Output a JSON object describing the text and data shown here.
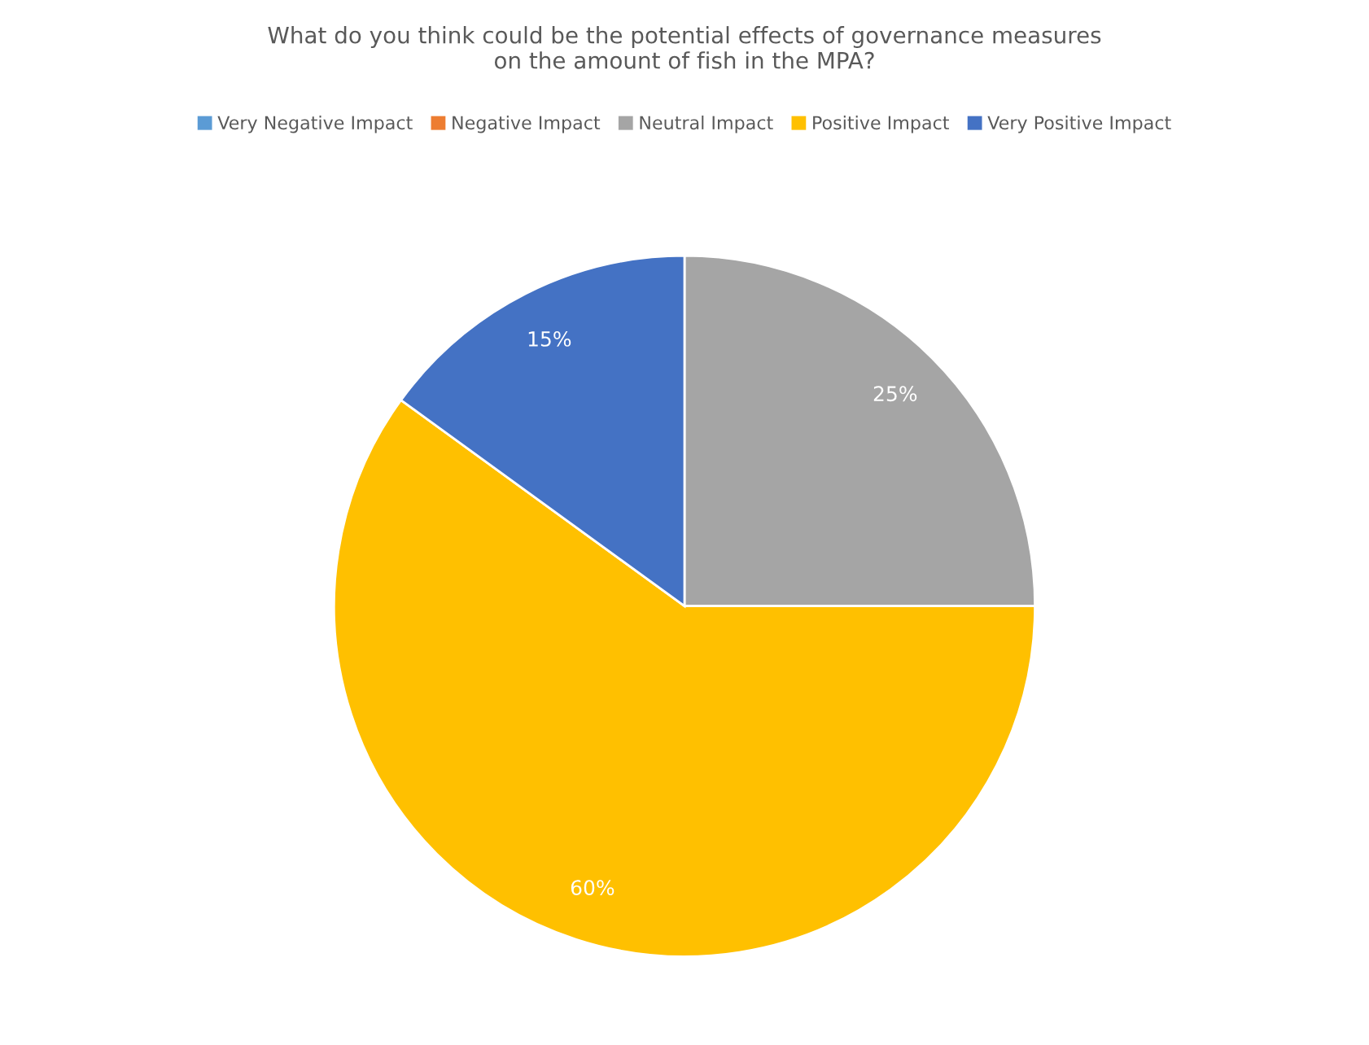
{
  "chart_data": {
    "type": "pie",
    "title": "What do you think could be the potential effects of governance measures\non the amount of fish in the MPA?",
    "categories": [
      "Very Negative Impact",
      "Negative Impact",
      "Neutral Impact",
      "Positive Impact",
      "Very Positive Impact"
    ],
    "values": [
      0,
      0,
      25,
      60,
      15
    ],
    "colors": [
      "#5b9bd5",
      "#ed7d31",
      "#a5a5a5",
      "#ffc000",
      "#4472c4"
    ],
    "value_labels": [
      null,
      null,
      "25%",
      "60%",
      "15%"
    ],
    "legend": "top"
  }
}
